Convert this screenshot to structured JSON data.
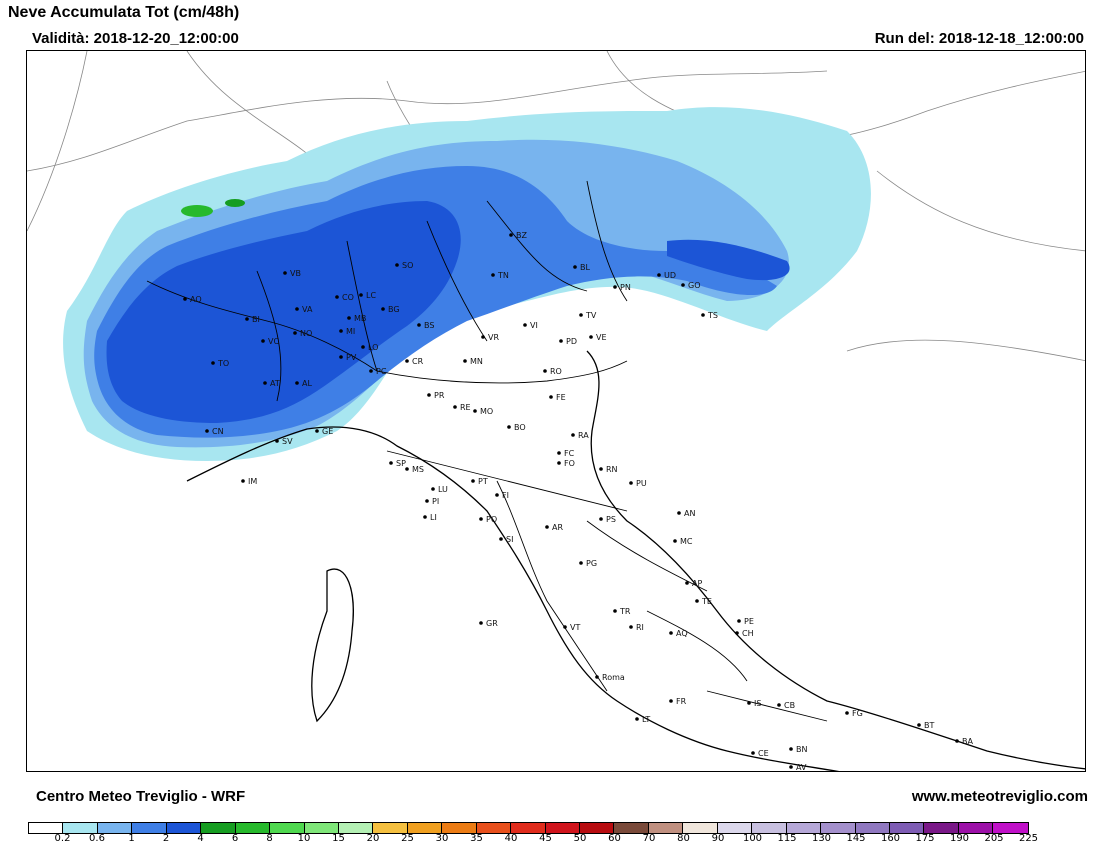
{
  "header": {
    "title": "Neve Accumulata Tot (cm/48h)",
    "validity": "Validità: 2018-12-20_12:00:00",
    "run": "Run del: 2018-12-18_12:00:00"
  },
  "footer": {
    "left": "Centro Meteo Treviglio - WRF",
    "right": "www.meteotreviglio.com"
  },
  "legend": {
    "ticks": [
      "0.2",
      "0.6",
      "1",
      "2",
      "4",
      "6",
      "8",
      "10",
      "15",
      "20",
      "25",
      "30",
      "35",
      "40",
      "45",
      "50",
      "60",
      "70",
      "80",
      "90",
      "100",
      "115",
      "130",
      "145",
      "160",
      "175",
      "190",
      "205",
      "225"
    ],
    "colors": [
      "#ffffff",
      "#a8e6f0",
      "#78b4ee",
      "#3f7fe6",
      "#1c55d6",
      "#169d21",
      "#27b92c",
      "#4fd84f",
      "#7fe679",
      "#b4f0b4",
      "#f5c040",
      "#f0a020",
      "#ec7c14",
      "#e8501c",
      "#e02c1c",
      "#d0141c",
      "#b80c10",
      "#7a4a3a",
      "#c09080",
      "#f0e6dc",
      "#dcd8ec",
      "#c8c0e0",
      "#b6a8d8",
      "#a490cc",
      "#9078c0",
      "#7e5cb4",
      "#7a1888",
      "#9c10a8",
      "#c010c8"
    ]
  },
  "cities": [
    {
      "code": "AO"
    },
    {
      "code": "BI"
    },
    {
      "code": "VB"
    },
    {
      "code": "CO"
    },
    {
      "code": "SO"
    },
    {
      "code": "LC"
    },
    {
      "code": "BG"
    },
    {
      "code": "BS"
    },
    {
      "code": "VA"
    },
    {
      "code": "NO"
    },
    {
      "code": "MI"
    },
    {
      "code": "MB"
    },
    {
      "code": "TO"
    },
    {
      "code": "VC"
    },
    {
      "code": "AT"
    },
    {
      "code": "AL"
    },
    {
      "code": "CN"
    },
    {
      "code": "LO"
    },
    {
      "code": "PV"
    },
    {
      "code": "PC"
    },
    {
      "code": "CR"
    },
    {
      "code": "MN"
    },
    {
      "code": "VR"
    },
    {
      "code": "VI"
    },
    {
      "code": "TV"
    },
    {
      "code": "PD"
    },
    {
      "code": "VE"
    },
    {
      "code": "RO"
    },
    {
      "code": "BZ"
    },
    {
      "code": "TN"
    },
    {
      "code": "BL"
    },
    {
      "code": "PN"
    },
    {
      "code": "UD"
    },
    {
      "code": "GO"
    },
    {
      "code": "TS"
    },
    {
      "code": "GE"
    },
    {
      "code": "SV"
    },
    {
      "code": "IM"
    },
    {
      "code": "SP"
    },
    {
      "code": "MS"
    },
    {
      "code": "PR"
    },
    {
      "code": "RE"
    },
    {
      "code": "MO"
    },
    {
      "code": "BO"
    },
    {
      "code": "FE"
    },
    {
      "code": "RA"
    },
    {
      "code": "FC"
    },
    {
      "code": "FO"
    },
    {
      "code": "RN"
    },
    {
      "code": "PU"
    },
    {
      "code": "AN"
    },
    {
      "code": "LU"
    },
    {
      "code": "PI"
    },
    {
      "code": "PT"
    },
    {
      "code": "FI"
    },
    {
      "code": "LI"
    },
    {
      "code": "PO"
    },
    {
      "code": "AR"
    },
    {
      "code": "SI"
    },
    {
      "code": "PS"
    },
    {
      "code": "MC"
    },
    {
      "code": "PG"
    },
    {
      "code": "AP"
    },
    {
      "code": "TE"
    },
    {
      "code": "TR"
    },
    {
      "code": "GR"
    },
    {
      "code": "VT"
    },
    {
      "code": "RI"
    },
    {
      "code": "PE"
    },
    {
      "code": "AQ"
    },
    {
      "code": "CH"
    },
    {
      "code": "Roma"
    },
    {
      "code": "FR"
    },
    {
      "code": "IS"
    },
    {
      "code": "CB"
    },
    {
      "code": "LT"
    },
    {
      "code": "FG"
    },
    {
      "code": "BT"
    },
    {
      "code": "BA"
    },
    {
      "code": "CE"
    },
    {
      "code": "BN"
    },
    {
      "code": "AV"
    }
  ]
}
